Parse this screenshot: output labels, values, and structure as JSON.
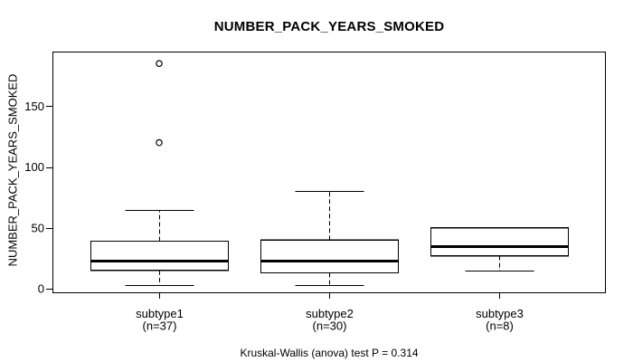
{
  "figure": {
    "background_color": "#ffffff",
    "foreground_color": "#000000"
  },
  "chart_data": {
    "type": "boxplot",
    "title": "NUMBER_PACK_YEARS_SMOKED",
    "ylabel": "NUMBER_PACK_YEARS_SMOKED",
    "xlabel": "",
    "ylim": [
      -5,
      195
    ],
    "yticks": [
      0,
      50,
      100,
      150
    ],
    "grid": false,
    "legend": "none",
    "annotation": "Kruskal-Wallis (anova) test P = 0.314",
    "p_value": 0.314,
    "groups": [
      {
        "label": "subtype1",
        "n": 37,
        "n_label": "(n=37)",
        "whisker_low": 3,
        "q1": 15,
        "median": 23,
        "q3": 39,
        "whisker_high": 65,
        "outliers": [
          120,
          185
        ]
      },
      {
        "label": "subtype2",
        "n": 30,
        "n_label": "(n=30)",
        "whisker_low": 3,
        "q1": 13,
        "median": 23,
        "q3": 40,
        "whisker_high": 80,
        "outliers": []
      },
      {
        "label": "subtype3",
        "n": 8,
        "n_label": "(n=8)",
        "whisker_low": 15,
        "q1": 27,
        "median": 35,
        "q3": 50,
        "whisker_high": 50,
        "outliers": []
      }
    ]
  }
}
